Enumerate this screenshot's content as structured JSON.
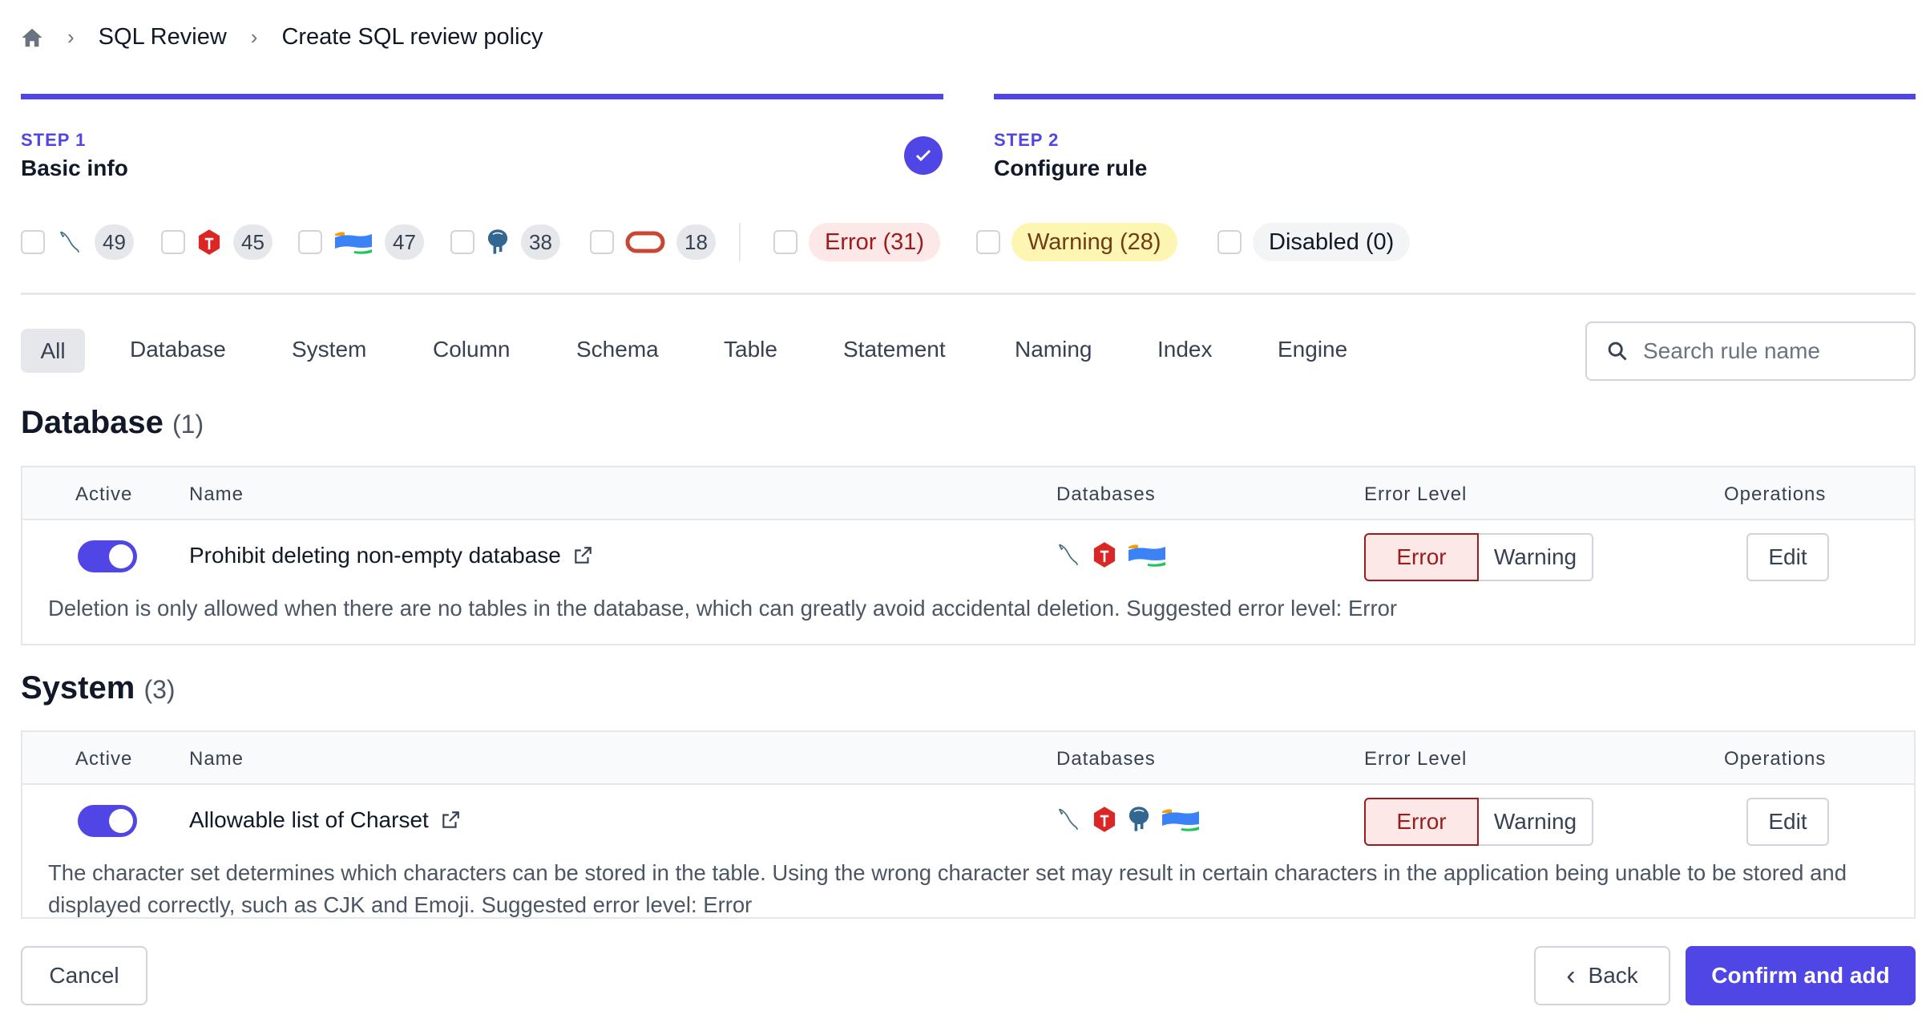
{
  "breadcrumb": {
    "items": [
      "SQL Review",
      "Create SQL review policy"
    ]
  },
  "steps": [
    {
      "label": "STEP 1",
      "title": "Basic info",
      "completed": true
    },
    {
      "label": "STEP 2",
      "title": "Configure rule",
      "completed": false
    }
  ],
  "engine_filters": [
    {
      "icon": "mysql-icon",
      "count": "49"
    },
    {
      "icon": "tidb-icon",
      "count": "45"
    },
    {
      "icon": "oceanbase-icon",
      "count": "47"
    },
    {
      "icon": "postgres-icon",
      "count": "38"
    },
    {
      "icon": "oracle-icon",
      "count": "18"
    }
  ],
  "level_filters": [
    {
      "label": "Error (31)",
      "color": "#fde8e8",
      "text": "#9b1c1c"
    },
    {
      "label": "Warning (28)",
      "color": "#fdf6b2",
      "text": "#723b13"
    },
    {
      "label": "Disabled (0)",
      "color": "#f3f4f6",
      "text": "#111827"
    }
  ],
  "tabs": [
    "All",
    "Database",
    "System",
    "Column",
    "Schema",
    "Table",
    "Statement",
    "Naming",
    "Index",
    "Engine"
  ],
  "search": {
    "placeholder": "Search rule name",
    "value": ""
  },
  "columns": {
    "active": "Active",
    "name": "Name",
    "databases": "Databases",
    "level": "Error Level",
    "ops": "Operations"
  },
  "sections": [
    {
      "title": "Database",
      "count": "(1)",
      "rules": [
        {
          "active": true,
          "name": "Prohibit deleting non-empty database",
          "databases": [
            "mysql-icon",
            "tidb-icon",
            "oceanbase-icon"
          ],
          "level": "Error",
          "description": "Deletion is only allowed when there are no tables in the database, which can greatly avoid accidental deletion. Suggested error level: Error"
        }
      ]
    },
    {
      "title": "System",
      "count": "(3)",
      "rules": [
        {
          "active": true,
          "name": "Allowable list of Charset",
          "databases": [
            "mysql-icon",
            "tidb-icon",
            "postgres-icon",
            "oceanbase-icon"
          ],
          "level": "Error",
          "description": "The character set determines which characters can be stored in the table. Using the wrong character set may result in certain characters in the application being unable to be stored and displayed correctly, such as CJK and Emoji. Suggested error level: Error"
        }
      ]
    }
  ],
  "level_options": {
    "error": "Error",
    "warning": "Warning"
  },
  "edit_label": "Edit",
  "footer": {
    "cancel": "Cancel",
    "back": "Back",
    "confirm": "Confirm and add"
  },
  "accent": "#4f46e5"
}
